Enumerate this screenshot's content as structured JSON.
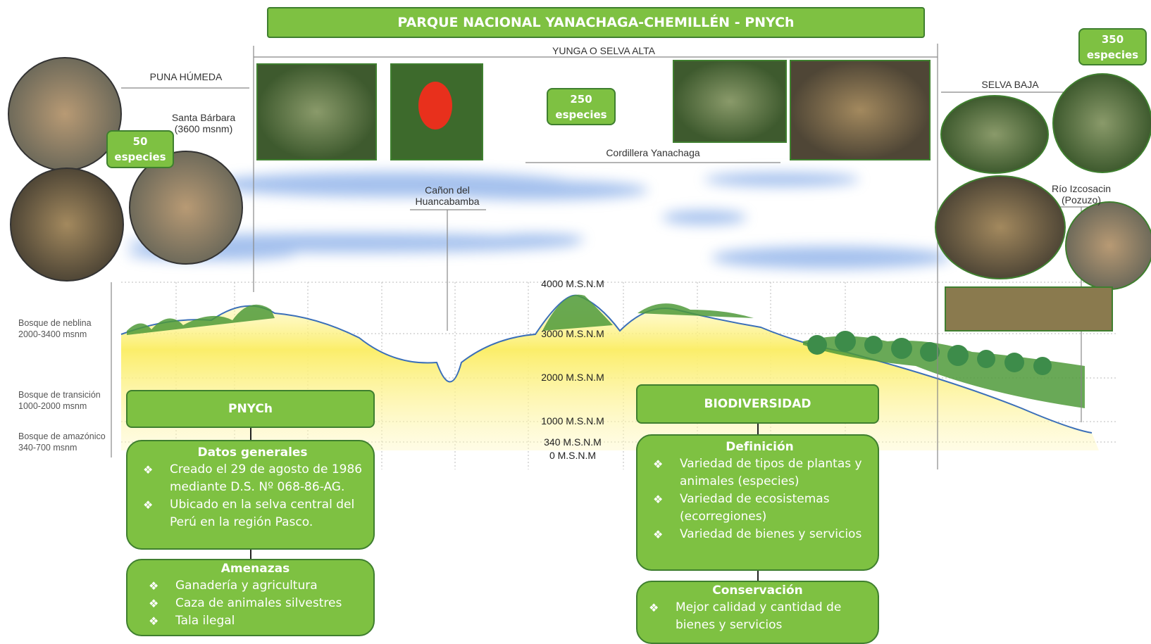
{
  "title": "PARQUE NACIONAL YANACHAGA-CHEMILLÉN - PNYCh",
  "zones": {
    "puna": "PUNA HÚMEDA",
    "yunga": "YUNGA O SELVA ALTA",
    "selva_baja": "SELVA BAJA"
  },
  "places": {
    "santa_barbara": [
      "Santa Bárbara",
      "(3600 msnm)"
    ],
    "canon": [
      "Cañon del",
      "Huancabamba"
    ],
    "cordillera": "Cordillera Yanachaga",
    "rio": [
      "Río Izcosacin",
      "(Pozuzo)"
    ]
  },
  "species": [
    {
      "count": 50,
      "label": "especies"
    },
    {
      "count": 250,
      "label": "especies"
    },
    {
      "count": 350,
      "label": "especies"
    }
  ],
  "altitudes": [
    "4000 M.S.N.M",
    "3000 M.S.N.M",
    "2000 M.S.N.M",
    "1000 M.S.N.M",
    "340 M.S.N.M",
    "0 M.S.N.M"
  ],
  "forests": [
    {
      "name": "Bosque de neblina",
      "range": "2000-3400 msnm"
    },
    {
      "name": "Bosque de transición",
      "range": "1000-2000 msnm"
    },
    {
      "name": "Bosque de amazónico",
      "range": "340-700 msnm"
    }
  ],
  "pnych": {
    "title": "PNYCh",
    "general": {
      "title": "Datos generales",
      "items": [
        "Creado el 29 de agosto de 1986 mediante D.S. Nº 068-86-AG.",
        "Ubicado en la selva central del Perú en la región Pasco."
      ]
    },
    "threats": {
      "title": "Amenazas",
      "items": [
        "Ganadería y agricultura",
        "Caza de animales silvestres",
        "Tala ilegal"
      ]
    }
  },
  "biodiversity": {
    "title": "BIODIVERSIDAD",
    "definition": {
      "title": "Definición",
      "items": [
        "Variedad de tipos de plantas y animales (especies)",
        "Variedad de ecosistemas (ecorregiones)",
        "Variedad de bienes y servicios"
      ]
    },
    "conservation": {
      "title": "Conservación",
      "items": [
        "Mejor calidad y cantidad de bienes y servicios"
      ]
    }
  }
}
